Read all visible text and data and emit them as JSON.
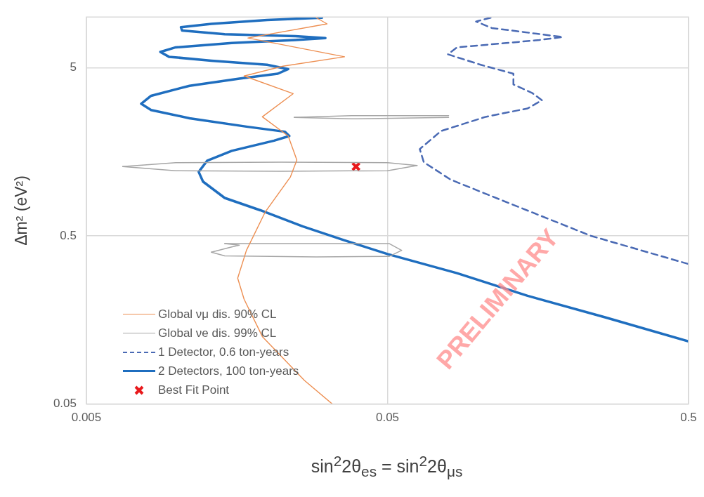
{
  "chart_data": {
    "type": "line",
    "xlabel": "sin$^{2}$2θ$_{es}$ = sin$^{2}$2θ$_{μs}$",
    "ylabel": "Δm² (eV²)",
    "log": "xy",
    "xlim": [
      0.005,
      0.5
    ],
    "ylim": [
      0.05,
      10
    ],
    "xticks": [
      0.005,
      0.05,
      0.5
    ],
    "yticks": [
      0.05,
      0.5,
      5
    ],
    "grid": true,
    "legend": "bottom left",
    "annotations": [
      "PRELIMINARY"
    ],
    "series": [
      {
        "name": "Global νμ dis. 90% CL",
        "color": "#ed8f52",
        "x": [
          0.029,
          0.0315,
          0.0172,
          0.036,
          0.0225,
          0.0167,
          0.0243,
          0.0192,
          0.0234,
          0.025,
          0.0238,
          0.0196,
          0.017,
          0.0159,
          0.0167,
          0.0192,
          0.0265,
          0.0328
        ],
        "values": [
          9.9,
          9.1,
          7.5,
          5.8,
          5.1,
          4.46,
          3.5,
          2.55,
          1.96,
          1.41,
          1.12,
          0.69,
          0.41,
          0.28,
          0.21,
          0.126,
          0.069,
          0.05
        ]
      },
      {
        "name": "Global νe dis. 99% CL",
        "color": "#a6a6a6",
        "x": [
          0.0066,
          0.0099,
          0.0222,
          0.05,
          0.0627
        ],
        "values": [
          1.29,
          1.36,
          1.37,
          1.36,
          1.31
        ]
      },
      {
        "color": "#a6a6a6",
        "x": [
          0.0066,
          0.0099,
          0.0222,
          0.05,
          0.0627
        ],
        "values": [
          1.29,
          1.22,
          1.21,
          1.22,
          1.31
        ]
      },
      {
        "color": "#a6a6a6",
        "x": [
          0.0245,
          0.038,
          0.0798
        ],
        "values": [
          2.53,
          2.59,
          2.59
        ]
      },
      {
        "color": "#a6a6a6",
        "x": [
          0.0245,
          0.038,
          0.0798
        ],
        "values": [
          2.53,
          2.48,
          2.53
        ]
      },
      {
        "color": "#a6a6a6",
        "x": [
          0.0144,
          0.029,
          0.0506,
          0.0557
        ],
        "values": [
          0.45,
          0.45,
          0.45,
          0.41
        ]
      },
      {
        "color": "#a6a6a6",
        "x": [
          0.013,
          0.0144,
          0.029,
          0.0506,
          0.0557
        ],
        "values": [
          0.4,
          0.38,
          0.375,
          0.377,
          0.41
        ]
      },
      {
        "color": "#a6a6a6",
        "x": [
          0.0144,
          0.0161,
          0.0152,
          0.013
        ],
        "values": [
          0.45,
          0.44,
          0.43,
          0.4
        ]
      },
      {
        "name": "1 Detector, 0.6 ton-years",
        "color": "#4a6ab4",
        "line_style": "dashed",
        "x": [
          0.11,
          0.0984,
          0.111,
          0.191,
          0.16,
          0.124,
          0.0851,
          0.0794,
          0.102,
          0.131,
          0.131,
          0.151,
          0.163,
          0.146,
          0.106,
          0.0753,
          0.064,
          0.066,
          0.081,
          0.111,
          0.151,
          0.237,
          0.5
        ],
        "values": [
          9.9,
          9.4,
          8.6,
          7.6,
          7.3,
          7.0,
          6.6,
          6.0,
          5.2,
          4.6,
          3.97,
          3.54,
          3.2,
          2.86,
          2.55,
          2.1,
          1.64,
          1.37,
          1.08,
          0.86,
          0.69,
          0.5,
          0.34
        ]
      },
      {
        "name": "2 Detectors, 100 ton-years",
        "color": "#1f6ebf",
        "x": [
          0.0303,
          0.0199,
          0.013,
          0.0103,
          0.0104,
          0.0144,
          0.0247,
          0.0311,
          0.0247,
          0.0152,
          0.0099,
          0.0088,
          0.0094,
          0.013,
          0.0199,
          0.0234,
          0.0216,
          0.0161,
          0.011,
          0.0082,
          0.0076,
          0.0082,
          0.011,
          0.017,
          0.0228,
          0.0236,
          0.021,
          0.0152,
          0.0126,
          0.0118,
          0.0122,
          0.0144,
          0.0189,
          0.0261,
          0.036,
          0.05,
          0.0851,
          0.146,
          0.264,
          0.5
        ],
        "values": [
          9.9,
          9.6,
          9.1,
          8.7,
          8.3,
          7.9,
          7.7,
          7.5,
          7.3,
          7.0,
          6.6,
          6.2,
          5.8,
          5.5,
          5.2,
          4.9,
          4.6,
          4.3,
          3.9,
          3.4,
          3.05,
          2.8,
          2.5,
          2.23,
          2.08,
          1.96,
          1.84,
          1.6,
          1.4,
          1.2,
          1.05,
          0.84,
          0.71,
          0.57,
          0.47,
          0.39,
          0.3,
          0.22,
          0.164,
          0.118
        ]
      },
      {
        "name": "Best Fit Point",
        "type": "scatter",
        "marker": "cross",
        "color": "#e8191c",
        "x": [
          0.0393
        ],
        "values": [
          1.29
        ]
      }
    ]
  }
}
